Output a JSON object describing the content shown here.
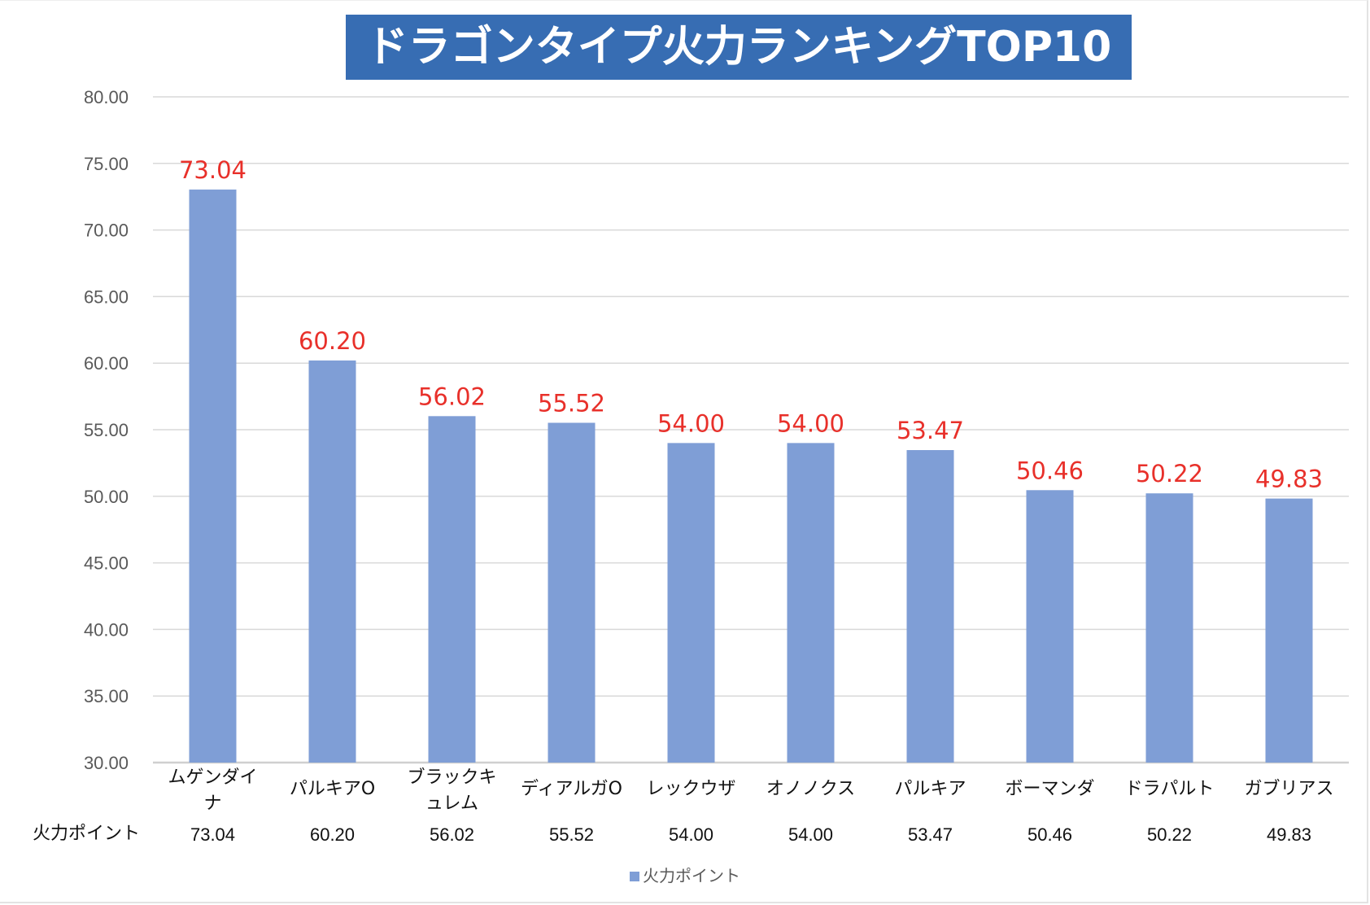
{
  "chart_data": {
    "type": "bar",
    "title": "ドラゴンタイプ火力ランキングTOP10",
    "categories": [
      "ムゲンダイナ",
      "パルキアO",
      "ブラックキュレム",
      "ディアルガO",
      "レックウザ",
      "オノノクス",
      "パルキア",
      "ボーマンダ",
      "ドラパルト",
      "ガブリアス"
    ],
    "category_label_lines": [
      [
        "ムゲンダイ",
        "ナ"
      ],
      [
        "パルキアO"
      ],
      [
        "ブラックキ",
        "ュレム"
      ],
      [
        "ディアルガO"
      ],
      [
        "レックウザ"
      ],
      [
        "オノノクス"
      ],
      [
        "パルキア"
      ],
      [
        "ボーマンダ"
      ],
      [
        "ドラパルト"
      ],
      [
        "ガブリアス"
      ]
    ],
    "series": [
      {
        "name": "火力ポイント",
        "values": [
          73.04,
          60.2,
          56.02,
          55.52,
          54.0,
          54.0,
          53.47,
          50.46,
          50.22,
          49.83
        ]
      }
    ],
    "value_labels": [
      "73.04",
      "60.20",
      "56.02",
      "55.52",
      "54.00",
      "54.00",
      "53.47",
      "50.46",
      "50.22",
      "49.83"
    ],
    "ylim": [
      30,
      80
    ],
    "yticks": [
      "30.00",
      "35.00",
      "40.00",
      "45.00",
      "50.00",
      "55.00",
      "60.00",
      "65.00",
      "70.00",
      "75.00",
      "80.00"
    ],
    "xlabel": "",
    "ylabel": "",
    "grid": true,
    "legend": "bottom",
    "data_table": true,
    "colors": {
      "bar": "#7f9ed6",
      "data_label": "#e8302a",
      "title_bg": "#376db3",
      "grid": "#d9d9d9"
    }
  }
}
